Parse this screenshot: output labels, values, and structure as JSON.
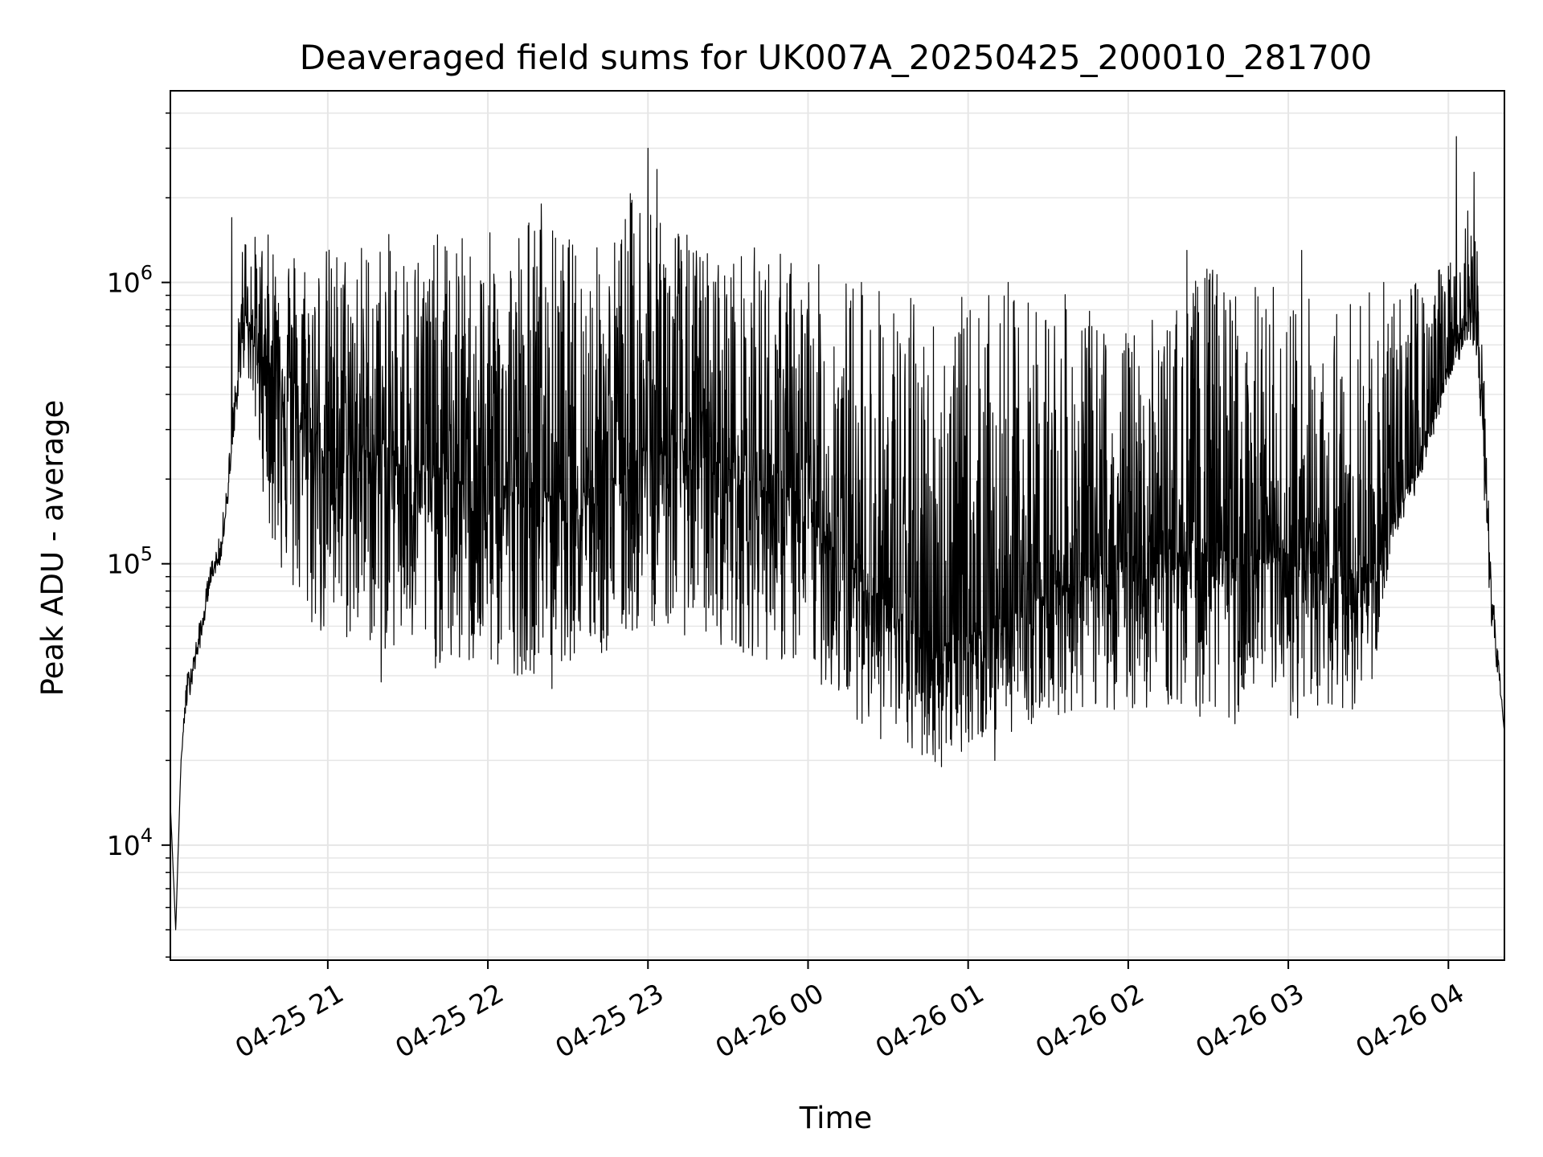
{
  "chart_data": {
    "type": "line",
    "title": "Deaveraged field sums for UK007A_20250425_200010_281700",
    "xlabel": "Time",
    "ylabel": "Peak ADU - average",
    "yscale": "log",
    "ylim": [
      3900,
      4800000
    ],
    "xlim": [
      "2025-04-25 20:01",
      "2025-04-26 04:21"
    ],
    "grid": true,
    "line_color": "#000000",
    "grid_color": "#e6e6e6",
    "x_ticks": [
      {
        "value": "2025-04-25 21:00",
        "label": "04-25 21"
      },
      {
        "value": "2025-04-25 22:00",
        "label": "04-25 22"
      },
      {
        "value": "2025-04-25 23:00",
        "label": "04-25 23"
      },
      {
        "value": "2025-04-26 00:00",
        "label": "04-26 00"
      },
      {
        "value": "2025-04-26 01:00",
        "label": "04-26 01"
      },
      {
        "value": "2025-04-26 02:00",
        "label": "04-26 02"
      },
      {
        "value": "2025-04-26 03:00",
        "label": "04-26 03"
      },
      {
        "value": "2025-04-26 04:00",
        "label": "04-26 04"
      }
    ],
    "y_ticks": [
      {
        "value": 10000,
        "base": "10",
        "exp": "4"
      },
      {
        "value": 100000,
        "base": "10",
        "exp": "5"
      },
      {
        "value": 1000000,
        "base": "10",
        "exp": "6"
      }
    ],
    "series": [
      {
        "x": [
          "2025-04-25 20:01",
          "2025-04-25 20:03",
          "2025-04-25 20:05",
          "2025-04-25 20:07",
          "2025-04-25 20:10",
          "2025-04-25 20:13",
          "2025-04-25 20:16",
          "2025-04-25 20:20",
          "2025-04-25 20:23",
          "2025-04-25 20:26",
          "2025-04-25 20:28",
          "2025-04-25 20:30",
          "2025-04-25 20:32",
          "2025-04-25 20:35",
          "2025-04-25 20:40",
          "2025-04-25 20:45",
          "2025-04-25 20:50",
          "2025-04-25 21:00",
          "2025-04-25 21:15",
          "2025-04-25 21:30",
          "2025-04-25 21:45",
          "2025-04-25 22:00",
          "2025-04-25 22:15",
          "2025-04-25 22:30",
          "2025-04-25 22:45",
          "2025-04-25 23:00",
          "2025-04-25 23:15",
          "2025-04-25 23:30",
          "2025-04-25 23:45",
          "2025-04-26 00:00",
          "2025-04-26 00:15",
          "2025-04-26 00:30",
          "2025-04-26 00:45",
          "2025-04-26 01:00",
          "2025-04-26 01:15",
          "2025-04-26 01:30",
          "2025-04-26 01:45",
          "2025-04-26 02:00",
          "2025-04-26 02:15",
          "2025-04-26 02:30",
          "2025-04-26 02:45",
          "2025-04-26 03:00",
          "2025-04-26 03:15",
          "2025-04-26 03:30",
          "2025-04-26 03:40",
          "2025-04-26 03:50",
          "2025-04-26 04:00",
          "2025-04-26 04:05",
          "2025-04-26 04:10",
          "2025-04-26 04:13",
          "2025-04-26 04:16",
          "2025-04-26 04:21"
        ],
        "y": [
          14000,
          5000,
          20000,
          35000,
          45000,
          60000,
          90000,
          110000,
          200000,
          400000,
          700000,
          800000,
          600000,
          550000,
          500000,
          450000,
          300000,
          250000,
          250000,
          220000,
          200000,
          180000,
          180000,
          180000,
          200000,
          250000,
          250000,
          220000,
          180000,
          150000,
          100000,
          70000,
          50000,
          55000,
          65000,
          80000,
          90000,
          100000,
          110000,
          110000,
          100000,
          100000,
          90000,
          85000,
          150000,
          250000,
          500000,
          700000,
          800000,
          300000,
          80000,
          25000
        ],
        "y_high": [
          14000,
          5000,
          20000,
          40000,
          50000,
          70000,
          100000,
          130000,
          250000,
          600000,
          1600000,
          1700000,
          1500000,
          1500000,
          1500000,
          1500000,
          1400000,
          1400000,
          1500000,
          1500000,
          1500000,
          1500000,
          1900000,
          1500000,
          1400000,
          3000000,
          1500000,
          1300000,
          1400000,
          1200000,
          1100000,
          1000000,
          900000,
          900000,
          900000,
          1000000,
          800000,
          700000,
          800000,
          1200000,
          1000000,
          1000000,
          900000,
          1000000,
          1000000,
          1100000,
          1200000,
          1500000,
          3400000,
          600000,
          100000,
          25000
        ],
        "y_low": [
          14000,
          5000,
          20000,
          30000,
          40000,
          55000,
          85000,
          100000,
          180000,
          350000,
          500000,
          450000,
          350000,
          200000,
          100000,
          80000,
          60000,
          50000,
          50000,
          45000,
          40000,
          40000,
          40000,
          45000,
          45000,
          60000,
          55000,
          50000,
          45000,
          40000,
          30000,
          22000,
          19000,
          22000,
          25000,
          28000,
          30000,
          30000,
          30000,
          28000,
          28000,
          27000,
          30000,
          30000,
          120000,
          200000,
          450000,
          550000,
          600000,
          200000,
          60000,
          25000
        ],
        "peaks": [
          {
            "x": "2025-04-25 20:24",
            "y": 1700000
          },
          {
            "x": "2025-04-25 22:20",
            "y": 1900000
          },
          {
            "x": "2025-04-25 23:00",
            "y": 3000000
          },
          {
            "x": "2025-04-26 00:20",
            "y": 1000000
          },
          {
            "x": "2025-04-26 01:15",
            "y": 1000000
          },
          {
            "x": "2025-04-26 02:22",
            "y": 1300000
          },
          {
            "x": "2025-04-26 03:05",
            "y": 1300000
          },
          {
            "x": "2025-04-26 04:03",
            "y": 3300000
          }
        ],
        "dips": [
          {
            "x": "2025-04-25 21:20",
            "y": 38000
          },
          {
            "x": "2025-04-25 22:24",
            "y": 36000
          },
          {
            "x": "2025-04-26 00:50",
            "y": 19000
          },
          {
            "x": "2025-04-26 01:10",
            "y": 20000
          },
          {
            "x": "2025-04-26 02:40",
            "y": 27000
          }
        ]
      }
    ]
  }
}
